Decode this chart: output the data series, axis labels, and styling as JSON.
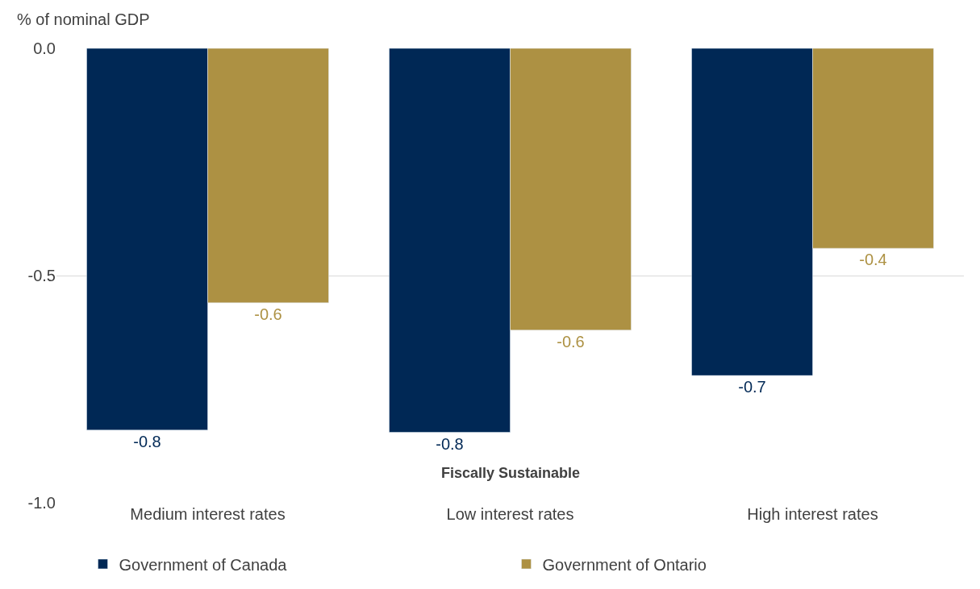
{
  "chart_data": {
    "type": "bar",
    "ylabel": "% of nominal GDP",
    "categories": [
      "Medium interest rates",
      "Low interest rates",
      "High interest rates"
    ],
    "series": [
      {
        "name": "Government of Canada",
        "color": "#002855",
        "values": [
          -0.84,
          -0.845,
          -0.72
        ],
        "value_labels": [
          "-0.8",
          "-0.8",
          "-0.7"
        ]
      },
      {
        "name": "Government of Ontario",
        "color": "#ad9143",
        "values": [
          -0.56,
          -0.62,
          -0.44
        ],
        "value_labels": [
          "-0.6",
          "-0.6",
          "-0.4"
        ]
      }
    ],
    "annotations": [
      "Fiscally Sustainable"
    ],
    "ylim": [
      -1.0,
      0.0
    ],
    "yticks": [
      {
        "value": 0,
        "label": "0.0"
      },
      {
        "value": -0.5,
        "label": "-0.5"
      },
      {
        "value": -1.0,
        "label": "-1.0"
      }
    ],
    "grid": "y",
    "legend": "bottom"
  }
}
